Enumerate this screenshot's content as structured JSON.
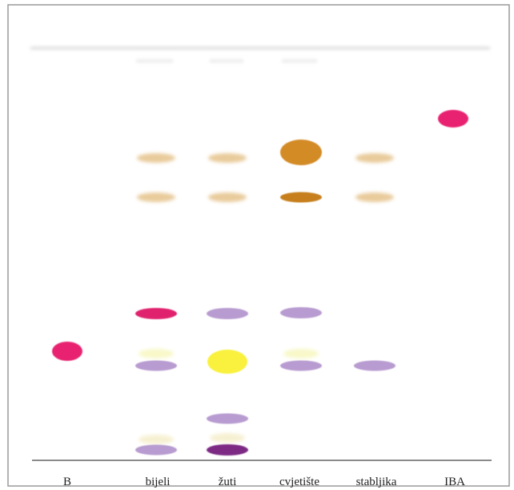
{
  "lanes": [
    {
      "id": "B",
      "label": "B"
    },
    {
      "id": "bijeli",
      "label": "bijeli"
    },
    {
      "id": "zuti",
      "label": "žuti"
    },
    {
      "id": "cvjetiste",
      "label": "cvjetište"
    },
    {
      "id": "stabljika",
      "label": "stabljika"
    },
    {
      "id": "IBA",
      "label": "IBA"
    }
  ],
  "spots": [
    {
      "lane": "B",
      "color": "#e8246f",
      "shape": "round"
    },
    {
      "lane": "bijeli",
      "color": "#e5c28a",
      "shape": "faint"
    },
    {
      "lane": "bijeli",
      "color": "#e5c28a",
      "shape": "faint"
    },
    {
      "lane": "bijeli",
      "color": "#e0236e",
      "shape": "band"
    },
    {
      "lane": "bijeli",
      "color": "#f7f7c0",
      "shape": "faint"
    },
    {
      "lane": "bijeli",
      "color": "#b89bd0",
      "shape": "band"
    },
    {
      "lane": "bijeli",
      "color": "#f5eecb",
      "shape": "faint"
    },
    {
      "lane": "bijeli",
      "color": "#b89bd0",
      "shape": "band"
    },
    {
      "lane": "zuti",
      "color": "#e5c28a",
      "shape": "faint"
    },
    {
      "lane": "zuti",
      "color": "#e5c28a",
      "shape": "faint"
    },
    {
      "lane": "zuti",
      "color": "#b89bd0",
      "shape": "band"
    },
    {
      "lane": "zuti",
      "color": "#f9f13c",
      "shape": "round"
    },
    {
      "lane": "zuti",
      "color": "#b89bd0",
      "shape": "band"
    },
    {
      "lane": "zuti",
      "color": "#f5eecb",
      "shape": "faint"
    },
    {
      "lane": "zuti",
      "color": "#7d2a85",
      "shape": "band"
    },
    {
      "lane": "cvjetiste",
      "color": "#d38b26",
      "shape": "round"
    },
    {
      "lane": "cvjetiste",
      "color": "#c67f1e",
      "shape": "band"
    },
    {
      "lane": "cvjetiste",
      "color": "#b89bd0",
      "shape": "band"
    },
    {
      "lane": "cvjetiste",
      "color": "#f7f7c0",
      "shape": "faint"
    },
    {
      "lane": "cvjetiste",
      "color": "#b89bd0",
      "shape": "band"
    },
    {
      "lane": "stabljika",
      "color": "#e5c28a",
      "shape": "faint"
    },
    {
      "lane": "stabljika",
      "color": "#e5c28a",
      "shape": "faint"
    },
    {
      "lane": "stabljika",
      "color": "#b89bd0",
      "shape": "band"
    },
    {
      "lane": "IBA",
      "color": "#e8246f",
      "shape": "round"
    }
  ],
  "colors": {
    "frame": "#9a9a9a",
    "baseline": "#8a8a8a",
    "solvent_front": "#d0d0d0"
  }
}
